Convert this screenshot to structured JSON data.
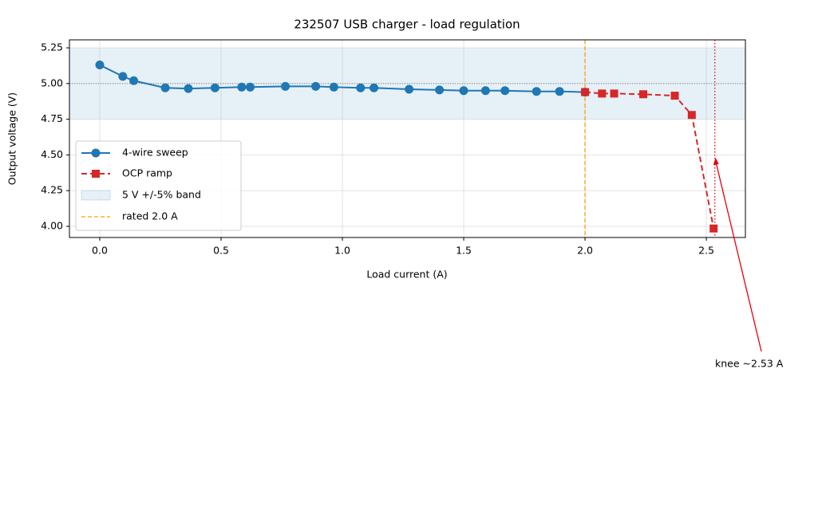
{
  "chart_data": {
    "type": "line",
    "title": "232507 USB charger - load regulation",
    "xlabel": "Load current (A)",
    "ylabel": "Output voltage (V)",
    "xlim": [
      -0.125,
      2.661
    ],
    "ylim": [
      3.922,
      5.306
    ],
    "xticks": [
      {
        "value": 0,
        "label": "0.0"
      },
      {
        "value": 0.5,
        "label": "0.5"
      },
      {
        "value": 1,
        "label": "1.0"
      },
      {
        "value": 1.5,
        "label": "1.5"
      },
      {
        "value": 2,
        "label": "2.0"
      },
      {
        "value": 2.5,
        "label": "2.5"
      }
    ],
    "yticks": [
      {
        "value": 4,
        "label": "4.00"
      },
      4.25,
      {
        "value": 4.5,
        "label": "4.50"
      },
      4.75,
      {
        "value": 5,
        "label": "5.00"
      },
      5.25
    ],
    "grid": true,
    "legend": "center left",
    "series": [
      {
        "name": "4-wire sweep",
        "color": "#1f77b4",
        "marker": "circle",
        "dash": "solid",
        "x": [
          0.0,
          0.095,
          0.14,
          0.27,
          0.365,
          0.475,
          0.585,
          0.62,
          0.765,
          0.89,
          0.965,
          1.075,
          1.13,
          1.275,
          1.4,
          1.5,
          1.59,
          1.67,
          1.8,
          1.895,
          2.0
        ],
        "values": [
          5.13,
          5.05,
          5.02,
          4.97,
          4.965,
          4.97,
          4.975,
          4.975,
          4.98,
          4.98,
          4.975,
          4.97,
          4.97,
          4.96,
          4.955,
          4.95,
          4.95,
          4.95,
          4.945,
          4.945,
          4.94
        ]
      },
      {
        "name": "OCP ramp",
        "color": "#d62728",
        "marker": "square",
        "dash": "dashed",
        "x": [
          2.0,
          2.07,
          2.12,
          2.24,
          2.37,
          2.44,
          2.53
        ],
        "values": [
          4.94,
          4.93,
          4.93,
          4.925,
          4.915,
          4.78,
          3.985
        ]
      }
    ],
    "band": {
      "name": "5 V +/-5% band",
      "range": [
        4.75,
        5.25
      ],
      "color": "#1f77b4"
    },
    "reference_y": 5.0,
    "rated": {
      "name": "rated 2.0 A",
      "x": 2.0,
      "color": "#ff9f00"
    },
    "knee": {
      "x": 2.535,
      "label": "knee ~2.53 A",
      "color": "#e8000b",
      "arrow_y": 4.48
    }
  }
}
